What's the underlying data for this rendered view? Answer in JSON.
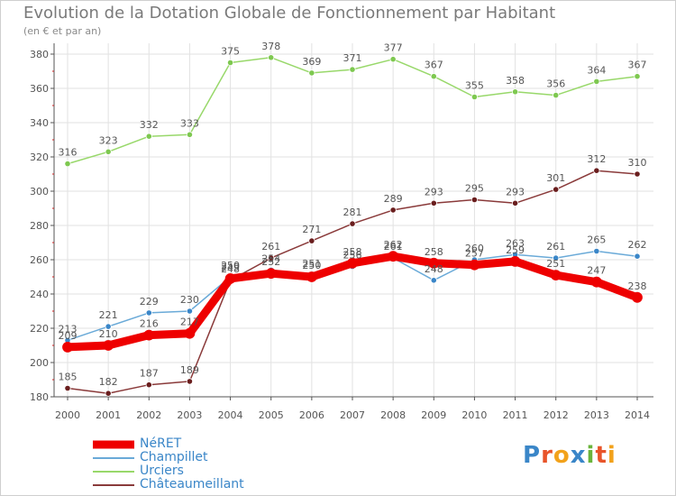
{
  "title": "Evolution de la Dotation Globale de Fonctionnement par Habitant",
  "subtitle": "(en € et par an)",
  "logo": {
    "text": "Proxiti",
    "letters": [
      {
        "ch": "P",
        "color": "#3a86c8"
      },
      {
        "ch": "r",
        "color": "#e8542a"
      },
      {
        "ch": "o",
        "color": "#f2a21b"
      },
      {
        "ch": "x",
        "color": "#3a86c8"
      },
      {
        "ch": "i",
        "color": "#6ab43b"
      },
      {
        "ch": "t",
        "color": "#e8542a"
      },
      {
        "ch": "i",
        "color": "#f2a21b"
      }
    ]
  },
  "chart_data": {
    "type": "line",
    "title": "Evolution de la Dotation Globale de Fonctionnement par Habitant",
    "subtitle": "(en € et par an)",
    "xlabel": "",
    "ylabel": "",
    "ylim": [
      180,
      380
    ],
    "yticks": [
      180,
      200,
      220,
      240,
      260,
      280,
      300,
      320,
      340,
      360,
      380
    ],
    "grid": true,
    "legend": "bottom-left",
    "x": [
      "2000",
      "2001",
      "2002",
      "2003",
      "2004",
      "2005",
      "2006",
      "2007",
      "2008",
      "2009",
      "2010",
      "2011",
      "2012",
      "2013",
      "2014"
    ],
    "series": [
      {
        "name": "Urciers",
        "color": "#98d86a",
        "marker": "#7ec850",
        "width": 1.5,
        "values": [
          316,
          323,
          332,
          333,
          375,
          378,
          369,
          371,
          377,
          367,
          355,
          358,
          356,
          364,
          367
        ],
        "labels": [
          "316",
          "323",
          "332",
          "333",
          "375",
          "378",
          "369",
          "371",
          "377",
          "367",
          "355",
          "358",
          "356",
          "364",
          "367"
        ]
      },
      {
        "name": "Châteaumeillant",
        "color": "#8a3a3a",
        "marker": "#6a1e1e",
        "width": 1.5,
        "values": [
          185,
          182,
          187,
          189,
          248,
          261,
          271,
          281,
          289,
          293,
          295,
          293,
          301,
          312,
          310
        ],
        "labels": [
          "185",
          "182",
          "187",
          "189",
          "248",
          "261",
          "271",
          "281",
          "289",
          "293",
          "295",
          "293",
          "301",
          "312",
          "310"
        ]
      },
      {
        "name": "Champillet",
        "color": "#6aaad8",
        "marker": "#3a86c8",
        "width": 1.5,
        "values": [
          213,
          221,
          229,
          230,
          250,
          254,
          251,
          256,
          261,
          248,
          260,
          263,
          261,
          265,
          262
        ],
        "labels": [
          "213",
          "221",
          "229",
          "230",
          "250",
          "254",
          "251",
          "256",
          "261",
          "248",
          "260",
          "263",
          "261",
          "265",
          "262"
        ]
      },
      {
        "name": "NéRET",
        "color": "#ee0000",
        "marker": "#ee0000",
        "width": 9,
        "values": [
          209,
          210,
          216,
          217,
          249,
          252,
          250,
          258,
          262,
          258,
          257,
          259,
          251,
          247,
          238
        ],
        "labels": [
          "209",
          "210",
          "216",
          "217",
          "249",
          "252",
          "250",
          "258",
          "262",
          "258",
          "257",
          "259",
          "251",
          "247",
          "238"
        ]
      }
    ]
  },
  "legend": {
    "items": [
      {
        "name": "NéRET",
        "color": "#ee0000"
      },
      {
        "name": "Champillet",
        "color": "#6aaad8"
      },
      {
        "name": "Urciers",
        "color": "#98d86a"
      },
      {
        "name": "Châteaumeillant",
        "color": "#8a3a3a"
      }
    ]
  }
}
